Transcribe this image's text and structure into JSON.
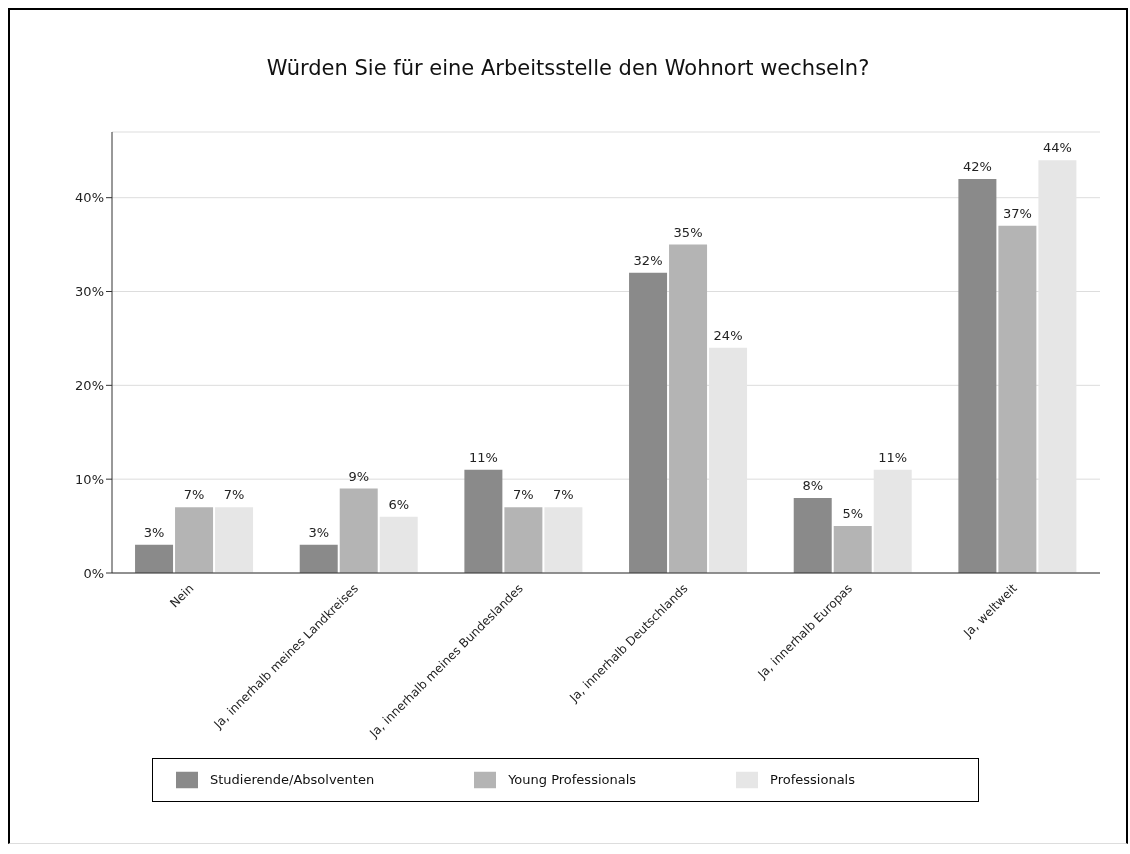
{
  "chart_data": {
    "type": "bar",
    "title": "Würden Sie für eine Arbeitsstelle den Wohnort wechseln?",
    "categories": [
      "Nein",
      "Ja, innerhalb meines Landkreises",
      "Ja, innerhalb meines Bundeslandes",
      "Ja, innerhalb Deutschlands",
      "Ja, innerhalb Europas",
      "Ja, weltweit"
    ],
    "series": [
      {
        "name": "Studierende/Absolventen",
        "color": "#8a8a8a",
        "values": [
          3,
          3,
          11,
          32,
          8,
          42
        ],
        "value_labels": [
          "3%",
          "3%",
          "11%",
          "32%",
          "8%",
          "42%"
        ]
      },
      {
        "name": "Young Professionals",
        "color": "#b4b4b4",
        "values": [
          7,
          9,
          7,
          35,
          5,
          37
        ],
        "value_labels": [
          "7%",
          "9%",
          "7%",
          "35%",
          "5%",
          "37%"
        ]
      },
      {
        "name": "Professionals",
        "color": "#e6e6e6",
        "values": [
          7,
          6,
          7,
          24,
          11,
          44
        ],
        "value_labels": [
          "7%",
          "6%",
          "7%",
          "24%",
          "11%",
          "44%"
        ]
      }
    ],
    "ylim": [
      0,
      47
    ],
    "yticks": [
      {
        "value": 0,
        "label": "0%"
      },
      {
        "value": 10,
        "label": "10%"
      },
      {
        "value": 20,
        "label": "20%"
      },
      {
        "value": 30,
        "label": "30%"
      },
      {
        "value": 40,
        "label": "40%"
      }
    ],
    "grid": "y",
    "legend": "bottom"
  }
}
